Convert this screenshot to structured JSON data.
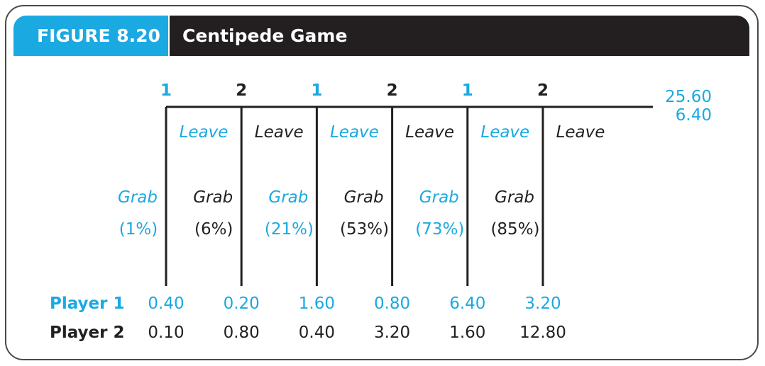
{
  "header": {
    "figure_label": "FIGURE 8.20",
    "title": "Centipede Game"
  },
  "colors": {
    "player1": "#1aa9e1",
    "player2": "#231f20",
    "title_bar": "#231f20",
    "figure_tab": "#1aa9e1"
  },
  "game": {
    "decision_nodes": [
      {
        "player": "1",
        "across_label": "Leave",
        "down_label": "Grab",
        "down_share": "(1%)",
        "payoff_p1": "0.40",
        "payoff_p2": "0.10"
      },
      {
        "player": "2",
        "across_label": "Leave",
        "down_label": "Grab",
        "down_share": "(6%)",
        "payoff_p1": "0.20",
        "payoff_p2": "0.80"
      },
      {
        "player": "1",
        "across_label": "Leave",
        "down_label": "Grab",
        "down_share": "(21%)",
        "payoff_p1": "1.60",
        "payoff_p2": "0.40"
      },
      {
        "player": "2",
        "across_label": "Leave",
        "down_label": "Grab",
        "down_share": "(53%)",
        "payoff_p1": "0.80",
        "payoff_p2": "3.20"
      },
      {
        "player": "1",
        "across_label": "Leave",
        "down_label": "Grab",
        "down_share": "(73%)",
        "payoff_p1": "6.40",
        "payoff_p2": "1.60"
      },
      {
        "player": "2",
        "across_label": "Leave",
        "down_label": "Grab",
        "down_share": "(85%)",
        "payoff_p1": "3.20",
        "payoff_p2": "12.80"
      }
    ],
    "terminal_payoff": {
      "p1": "25.60",
      "p2": "6.40"
    },
    "row_labels": {
      "player1": "Player 1",
      "player2": "Player 2"
    }
  }
}
